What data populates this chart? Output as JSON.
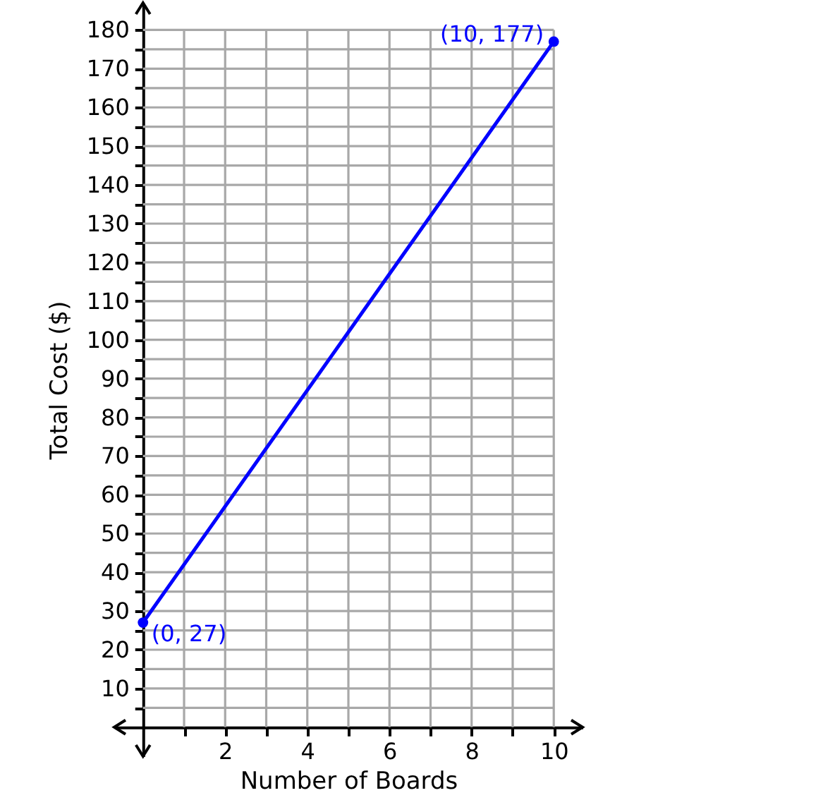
{
  "chart_data": {
    "type": "line",
    "xlabel": "Number of Boards",
    "ylabel": "Total Cost ($)",
    "x": [
      0,
      10
    ],
    "series": [
      {
        "color": "#0000ff",
        "values": [
          27,
          177
        ]
      }
    ],
    "marker": "circle",
    "annotations": [
      {
        "text": "(0, 27)",
        "x": 0,
        "y": 27
      },
      {
        "text": "(10, 177)",
        "x": 10,
        "y": 177
      }
    ],
    "xlim": [
      -0.7,
      10.7
    ],
    "ylim": [
      -7.5,
      187
    ],
    "xticks": [
      {
        "value": 1,
        "label": null
      },
      2,
      {
        "value": 3,
        "label": null
      },
      4,
      {
        "value": 5,
        "label": null
      },
      6,
      {
        "value": 7,
        "label": null
      },
      8,
      {
        "value": 9,
        "label": null
      },
      10
    ],
    "yticks": [
      {
        "value": 5,
        "label": null
      },
      10,
      {
        "value": 15,
        "label": null
      },
      20,
      {
        "value": 25,
        "label": null
      },
      30,
      {
        "value": 35,
        "label": null
      },
      40,
      {
        "value": 45,
        "label": null
      },
      50,
      {
        "value": 55,
        "label": null
      },
      60,
      {
        "value": 65,
        "label": null
      },
      70,
      {
        "value": 75,
        "label": null
      },
      80,
      {
        "value": 85,
        "label": null
      },
      90,
      {
        "value": 95,
        "label": null
      },
      100,
      {
        "value": 105,
        "label": null
      },
      110,
      {
        "value": 115,
        "label": null
      },
      120,
      {
        "value": 125,
        "label": null
      },
      130,
      {
        "value": 135,
        "label": null
      },
      140,
      {
        "value": 145,
        "label": null
      },
      150,
      {
        "value": 155,
        "label": null
      },
      160,
      {
        "value": 165,
        "label": null
      },
      170,
      {
        "value": 175,
        "label": null
      },
      180
    ],
    "grid": true
  }
}
